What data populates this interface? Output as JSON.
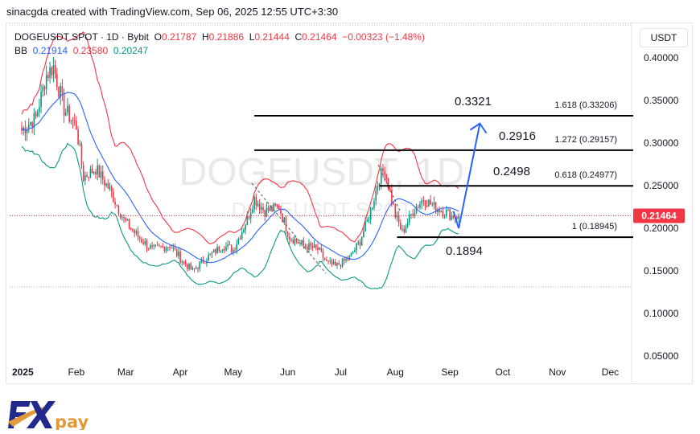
{
  "credit": "sinacgda created with TradingView.com, Sep 06, 2025 12:55 UTC+3:30",
  "legend": {
    "symbol": "DOGEUSDT SPOT · 1D · Bybit",
    "o_label": "O",
    "o": "0.21787",
    "h_label": "H",
    "h": "0.21886",
    "l_label": "L",
    "l": "0.21444",
    "c_label": "C",
    "c": "0.21464",
    "change": "−0.00323 (−1.48%)",
    "bb_label": "BB",
    "bb_basis": "0.21914",
    "bb_upper": "0.23580",
    "bb_lower": "0.20247"
  },
  "currency": "USDT",
  "watermark": {
    "main": "DOGEUSDT, 1D",
    "sub": "DOGEUSDT SPOT"
  },
  "colors": {
    "up": "#089981",
    "down": "#f23645",
    "bb_basis": "#2962ff",
    "bb_upper": "#f23645",
    "bb_lower": "#089981",
    "arrow": "#2962ff",
    "logo_blue": "#1f2a8c",
    "logo_orange": "#e09a3a"
  },
  "logo": {
    "fx": "FX",
    "pay": "pay"
  },
  "chart_data": {
    "type": "candlestick",
    "title": "DOGEUSDT SPOT · 1D · Bybit",
    "ylim": [
      0.05,
      0.4
    ],
    "y_ticks": [
      "0.40000",
      "0.35000",
      "0.30000",
      "0.25000",
      "0.20000",
      "0.15000",
      "0.10000",
      "0.05000"
    ],
    "x_ticks": [
      {
        "label": "2025",
        "day": 0
      },
      {
        "label": "Feb",
        "day": 31
      },
      {
        "label": "Mar",
        "day": 59
      },
      {
        "label": "Apr",
        "day": 90
      },
      {
        "label": "May",
        "day": 120
      },
      {
        "label": "Jun",
        "day": 151
      },
      {
        "label": "Jul",
        "day": 181
      },
      {
        "label": "Aug",
        "day": 212
      },
      {
        "label": "Sep",
        "day": 243
      },
      {
        "label": "Oct",
        "day": 273
      },
      {
        "label": "Nov",
        "day": 304
      },
      {
        "label": "Dec",
        "day": 334
      }
    ],
    "last_price": "0.21464",
    "close_path_day_price": [
      [
        0,
        0.315
      ],
      [
        8,
        0.33
      ],
      [
        14,
        0.38
      ],
      [
        18,
        0.39
      ],
      [
        24,
        0.34
      ],
      [
        31,
        0.32
      ],
      [
        35,
        0.26
      ],
      [
        42,
        0.27
      ],
      [
        50,
        0.245
      ],
      [
        58,
        0.21
      ],
      [
        66,
        0.19
      ],
      [
        74,
        0.175
      ],
      [
        84,
        0.18
      ],
      [
        92,
        0.16
      ],
      [
        97,
        0.15
      ],
      [
        105,
        0.165
      ],
      [
        114,
        0.18
      ],
      [
        120,
        0.175
      ],
      [
        128,
        0.21
      ],
      [
        132,
        0.235
      ],
      [
        138,
        0.22
      ],
      [
        146,
        0.225
      ],
      [
        152,
        0.19
      ],
      [
        160,
        0.18
      ],
      [
        168,
        0.175
      ],
      [
        173,
        0.16
      ],
      [
        178,
        0.155
      ],
      [
        186,
        0.165
      ],
      [
        192,
        0.185
      ],
      [
        198,
        0.22
      ],
      [
        203,
        0.26
      ],
      [
        206,
        0.27
      ],
      [
        212,
        0.215
      ],
      [
        216,
        0.195
      ],
      [
        222,
        0.22
      ],
      [
        228,
        0.235
      ],
      [
        234,
        0.225
      ],
      [
        240,
        0.22
      ],
      [
        244,
        0.215
      ],
      [
        248,
        0.21464
      ]
    ],
    "bollinger": {
      "period": 20,
      "stddev": 2
    },
    "fibonacci_levels": [
      {
        "ratio": "1.618",
        "price": 0.33206,
        "label": "1.618 (0.33206)",
        "target": "0.3321",
        "start_day": 132
      },
      {
        "ratio": "1.272",
        "price": 0.29157,
        "label": "1.272 (0.29157)",
        "target": "0.2916",
        "start_day": 132
      },
      {
        "ratio": "0.618",
        "price": 0.24977,
        "label": "0.618 (0.24977)",
        "target": "0.2498",
        "start_day": 203
      },
      {
        "ratio": "1",
        "price": 0.18945,
        "label": "1 (0.18945)",
        "target": "0.1894",
        "start_day": 213
      }
    ],
    "projection_arrow": [
      [
        245,
        0.22
      ],
      [
        248,
        0.2
      ],
      [
        260,
        0.323
      ]
    ]
  }
}
